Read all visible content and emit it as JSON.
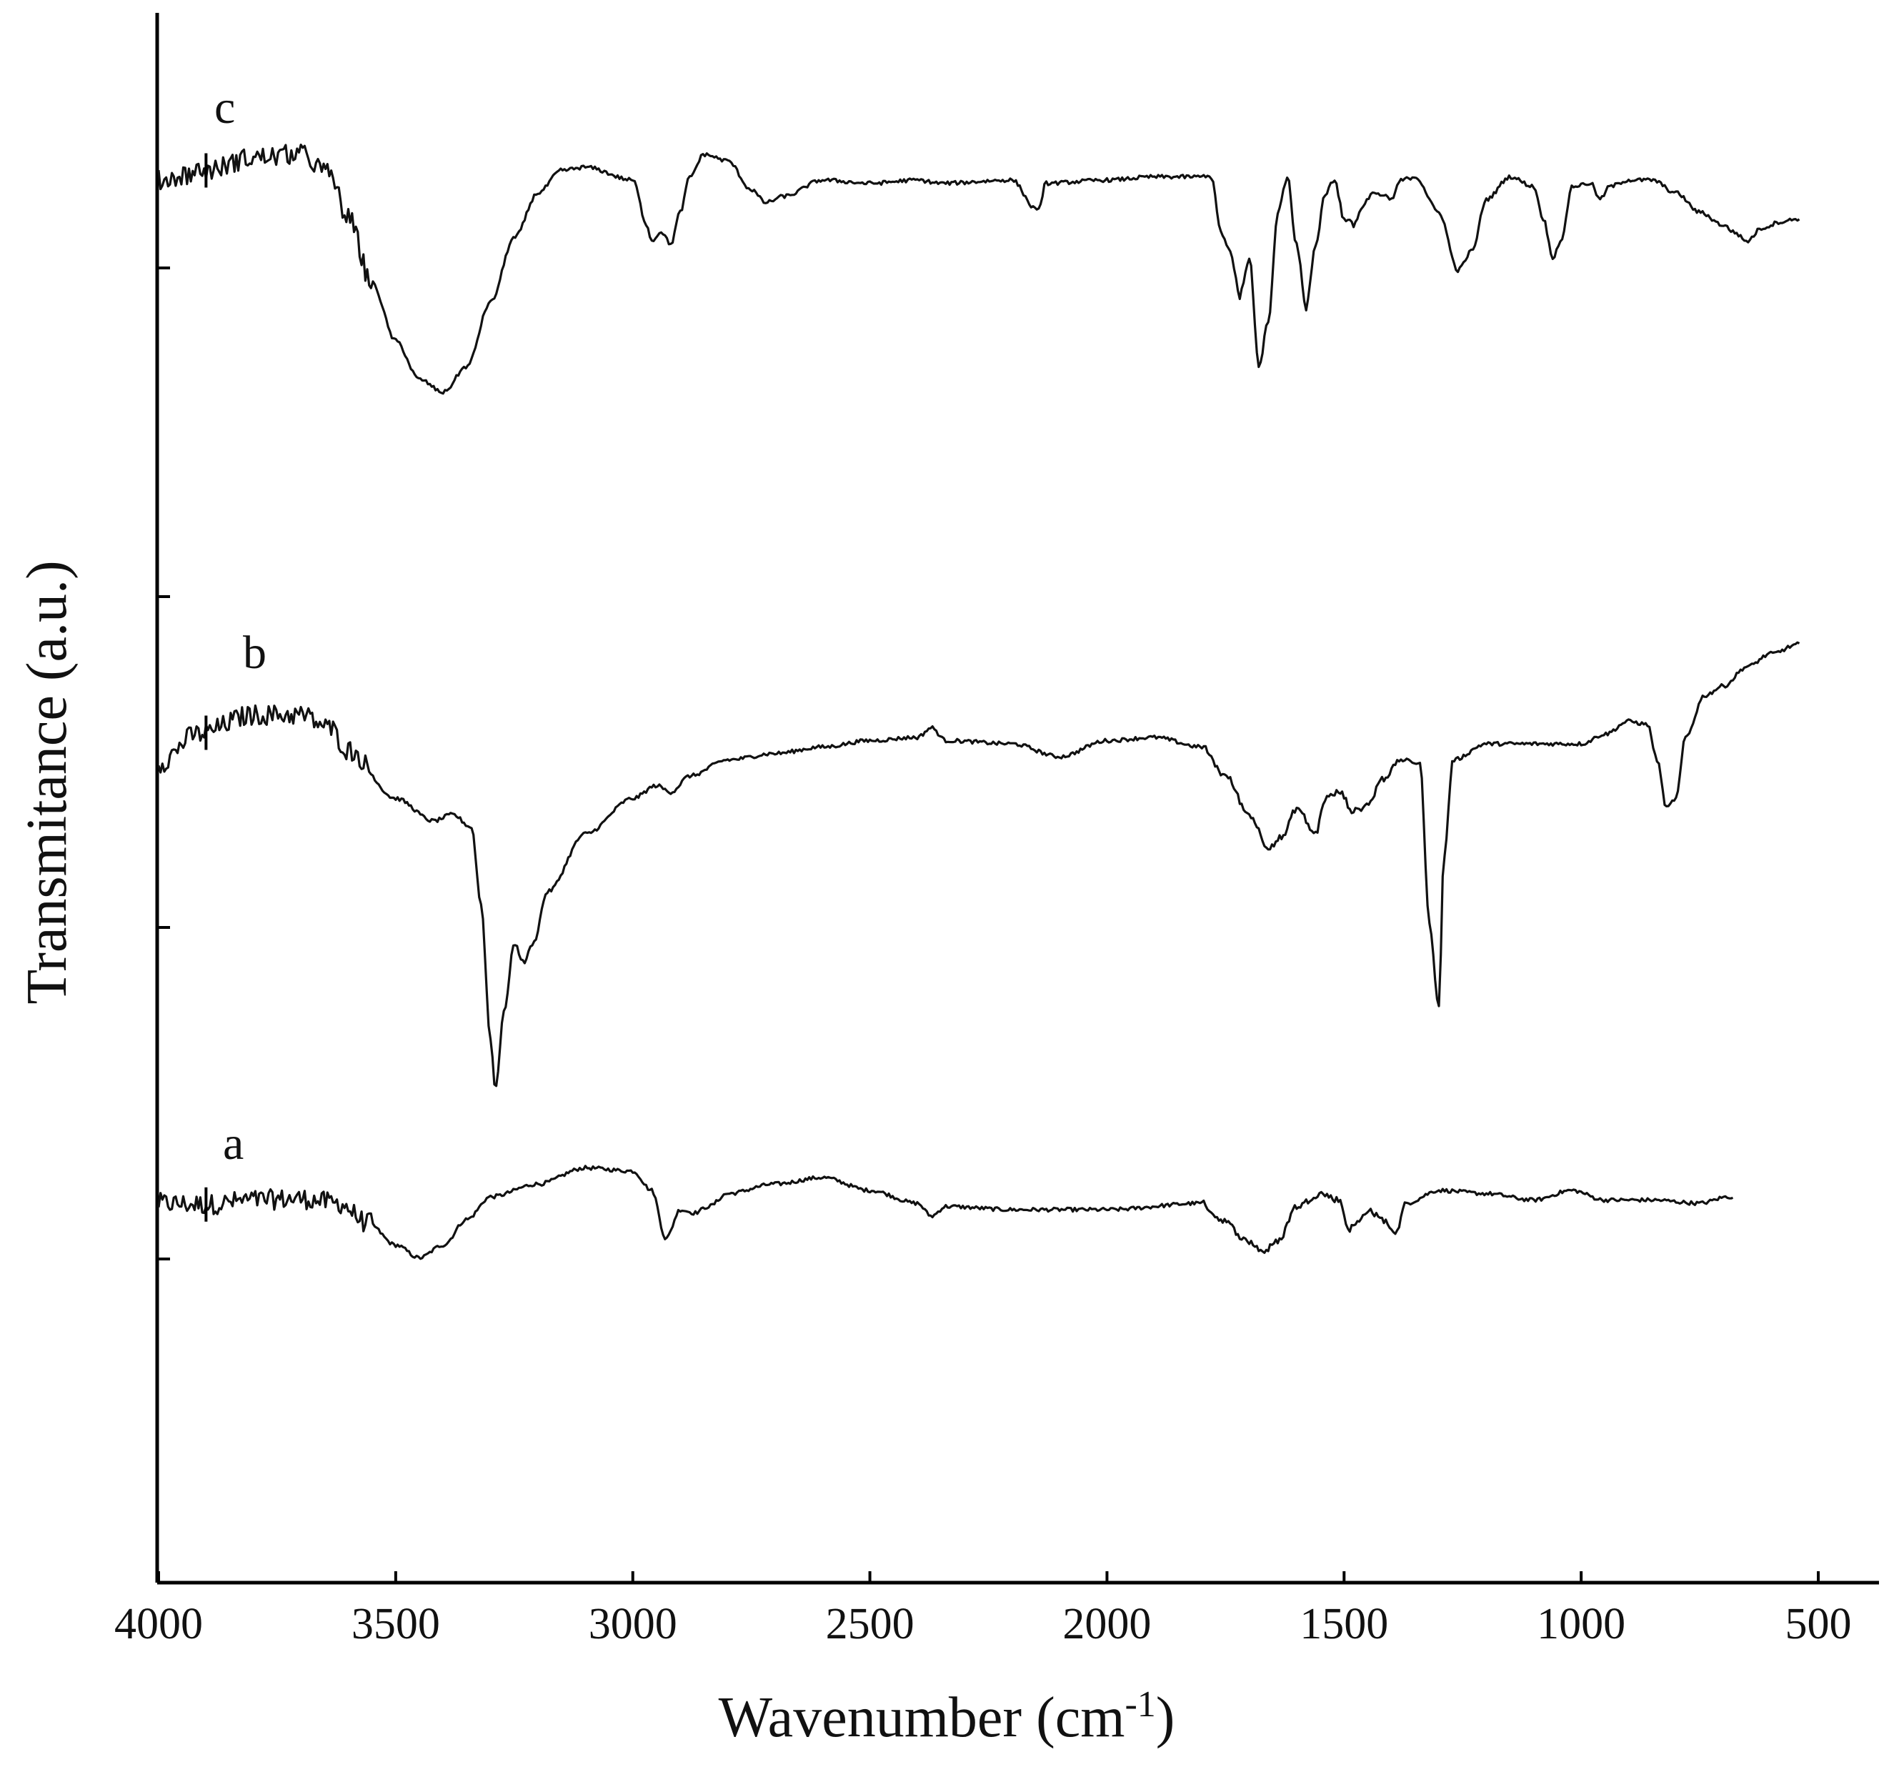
{
  "chart_data": {
    "type": "line",
    "title": "",
    "xlabel_main": "Wavenumber (cm",
    "xlabel_sup": "-1",
    "xlabel_close": ")",
    "ylabel": "Transmitance (a.u.)",
    "xlim": [
      4000,
      500
    ],
    "x_reversed": true,
    "xticks": [
      4000,
      3500,
      3000,
      2500,
      2000,
      1500,
      1000,
      500
    ],
    "yticks_unlabeled": 4,
    "grid": false,
    "legend": "none",
    "color": "#111111",
    "series": [
      {
        "name": "a",
        "x_start": 4000,
        "x_end": 680,
        "noise_above": 3550,
        "points": [
          [
            4000,
            0.0
          ],
          [
            3900,
            -0.02
          ],
          [
            3800,
            0.05
          ],
          [
            3700,
            0.07
          ],
          [
            3620,
            0.0
          ],
          [
            3560,
            -0.3
          ],
          [
            3500,
            -0.65
          ],
          [
            3450,
            -0.85
          ],
          [
            3400,
            -0.65
          ],
          [
            3350,
            -0.25
          ],
          [
            3300,
            0.1
          ],
          [
            3200,
            0.3
          ],
          [
            3100,
            0.55
          ],
          [
            3000,
            0.5
          ],
          [
            2960,
            0.2
          ],
          [
            2930,
            -0.55
          ],
          [
            2900,
            -0.1
          ],
          [
            2870,
            -0.15
          ],
          [
            2840,
            -0.05
          ],
          [
            2800,
            0.15
          ],
          [
            2700,
            0.3
          ],
          [
            2600,
            0.4
          ],
          [
            2500,
            0.2
          ],
          [
            2400,
            0.0
          ],
          [
            2370,
            -0.2
          ],
          [
            2340,
            -0.05
          ],
          [
            2200,
            -0.1
          ],
          [
            2000,
            -0.1
          ],
          [
            1800,
            0.0
          ],
          [
            1760,
            -0.25
          ],
          [
            1700,
            -0.6
          ],
          [
            1670,
            -0.75
          ],
          [
            1640,
            -0.6
          ],
          [
            1600,
            -0.05
          ],
          [
            1550,
            0.15
          ],
          [
            1510,
            0.05
          ],
          [
            1490,
            -0.4
          ],
          [
            1470,
            -0.3
          ],
          [
            1450,
            -0.1
          ],
          [
            1420,
            -0.25
          ],
          [
            1390,
            -0.45
          ],
          [
            1370,
            0.0
          ],
          [
            1300,
            0.2
          ],
          [
            1200,
            0.15
          ],
          [
            1100,
            0.05
          ],
          [
            1020,
            0.2
          ],
          [
            950,
            0.05
          ],
          [
            850,
            0.05
          ],
          [
            750,
            0.0
          ],
          [
            690,
            0.1
          ]
        ]
      },
      {
        "name": "b",
        "x_start": 4000,
        "x_end": 540,
        "noise_above": 3550,
        "points": [
          [
            4000,
            0.0
          ],
          [
            3920,
            0.45
          ],
          [
            3800,
            0.75
          ],
          [
            3700,
            0.75
          ],
          [
            3640,
            0.55
          ],
          [
            3600,
            0.2
          ],
          [
            3500,
            -0.55
          ],
          [
            3420,
            -0.9
          ],
          [
            3380,
            -0.8
          ],
          [
            3340,
            -1.0
          ],
          [
            3320,
            -2.2
          ],
          [
            3300,
            -4.3
          ],
          [
            3290,
            -5.05
          ],
          [
            3270,
            -3.8
          ],
          [
            3250,
            -2.8
          ],
          [
            3230,
            -3.1
          ],
          [
            3210,
            -2.8
          ],
          [
            3180,
            -2.0
          ],
          [
            3100,
            -1.1
          ],
          [
            3000,
            -0.55
          ],
          [
            2950,
            -0.35
          ],
          [
            2920,
            -0.45
          ],
          [
            2880,
            -0.2
          ],
          [
            2800,
            0.05
          ],
          [
            2700,
            0.15
          ],
          [
            2600,
            0.25
          ],
          [
            2500,
            0.35
          ],
          [
            2400,
            0.4
          ],
          [
            2370,
            0.55
          ],
          [
            2340,
            0.35
          ],
          [
            2200,
            0.3
          ],
          [
            2100,
            0.1
          ],
          [
            2000,
            0.35
          ],
          [
            1900,
            0.4
          ],
          [
            1800,
            0.25
          ],
          [
            1750,
            -0.2
          ],
          [
            1700,
            -0.8
          ],
          [
            1660,
            -1.3
          ],
          [
            1630,
            -1.15
          ],
          [
            1600,
            -0.7
          ],
          [
            1560,
            -1.1
          ],
          [
            1540,
            -0.55
          ],
          [
            1510,
            -0.45
          ],
          [
            1480,
            -0.75
          ],
          [
            1450,
            -0.65
          ],
          [
            1420,
            -0.25
          ],
          [
            1380,
            0.05
          ],
          [
            1340,
            0.0
          ],
          [
            1320,
            -2.5
          ],
          [
            1300,
            -3.8
          ],
          [
            1290,
            -1.5
          ],
          [
            1270,
            0.05
          ],
          [
            1200,
            0.3
          ],
          [
            1100,
            0.3
          ],
          [
            1000,
            0.3
          ],
          [
            950,
            0.45
          ],
          [
            900,
            0.65
          ],
          [
            860,
            0.6
          ],
          [
            840,
            0.05
          ],
          [
            820,
            -0.7
          ],
          [
            800,
            -0.55
          ],
          [
            780,
            0.4
          ],
          [
            740,
            1.05
          ],
          [
            700,
            1.2
          ],
          [
            650,
            1.5
          ],
          [
            600,
            1.7
          ],
          [
            540,
            1.85
          ]
        ]
      },
      {
        "name": "c",
        "x_start": 4000,
        "x_end": 540,
        "noise_above": 3550,
        "points": [
          [
            4000,
            0.0
          ],
          [
            3900,
            0.15
          ],
          [
            3800,
            0.35
          ],
          [
            3700,
            0.4
          ],
          [
            3640,
            0.1
          ],
          [
            3600,
            -0.6
          ],
          [
            3550,
            -1.6
          ],
          [
            3500,
            -2.5
          ],
          [
            3450,
            -3.1
          ],
          [
            3400,
            -3.3
          ],
          [
            3350,
            -2.9
          ],
          [
            3300,
            -1.9
          ],
          [
            3250,
            -0.9
          ],
          [
            3200,
            -0.2
          ],
          [
            3150,
            0.15
          ],
          [
            3100,
            0.2
          ],
          [
            3000,
            0.0
          ],
          [
            2970,
            -0.7
          ],
          [
            2960,
            -0.95
          ],
          [
            2940,
            -0.8
          ],
          [
            2920,
            -1.0
          ],
          [
            2900,
            -0.5
          ],
          [
            2880,
            0.05
          ],
          [
            2850,
            0.4
          ],
          [
            2800,
            0.3
          ],
          [
            2750,
            -0.15
          ],
          [
            2720,
            -0.35
          ],
          [
            2680,
            -0.25
          ],
          [
            2600,
            0.0
          ],
          [
            2500,
            -0.05
          ],
          [
            2400,
            0.0
          ],
          [
            2350,
            -0.05
          ],
          [
            2200,
            0.0
          ],
          [
            2150,
            -0.45
          ],
          [
            2140,
            -0.4
          ],
          [
            2130,
            -0.05
          ],
          [
            2000,
            0.0
          ],
          [
            1900,
            0.05
          ],
          [
            1780,
            0.05
          ],
          [
            1760,
            -0.8
          ],
          [
            1740,
            -1.1
          ],
          [
            1720,
            -1.8
          ],
          [
            1700,
            -1.2
          ],
          [
            1680,
            -2.9
          ],
          [
            1660,
            -2.2
          ],
          [
            1640,
            -0.5
          ],
          [
            1620,
            0.05
          ],
          [
            1600,
            -1.0
          ],
          [
            1580,
            -2.0
          ],
          [
            1560,
            -1.0
          ],
          [
            1540,
            -0.2
          ],
          [
            1520,
            0.0
          ],
          [
            1500,
            -0.6
          ],
          [
            1480,
            -0.7
          ],
          [
            1460,
            -0.4
          ],
          [
            1440,
            -0.2
          ],
          [
            1400,
            -0.3
          ],
          [
            1380,
            0.0
          ],
          [
            1350,
            0.05
          ],
          [
            1300,
            -0.5
          ],
          [
            1260,
            -1.4
          ],
          [
            1230,
            -1.1
          ],
          [
            1200,
            -0.3
          ],
          [
            1150,
            0.05
          ],
          [
            1100,
            -0.1
          ],
          [
            1080,
            -0.6
          ],
          [
            1060,
            -1.2
          ],
          [
            1040,
            -0.9
          ],
          [
            1020,
            -0.1
          ],
          [
            980,
            -0.05
          ],
          [
            960,
            -0.3
          ],
          [
            940,
            -0.1
          ],
          [
            900,
            0.0
          ],
          [
            850,
            0.0
          ],
          [
            800,
            -0.2
          ],
          [
            750,
            -0.5
          ],
          [
            700,
            -0.7
          ],
          [
            680,
            -0.8
          ],
          [
            650,
            -0.95
          ],
          [
            620,
            -0.75
          ],
          [
            580,
            -0.65
          ],
          [
            540,
            -0.6
          ]
        ]
      }
    ]
  }
}
